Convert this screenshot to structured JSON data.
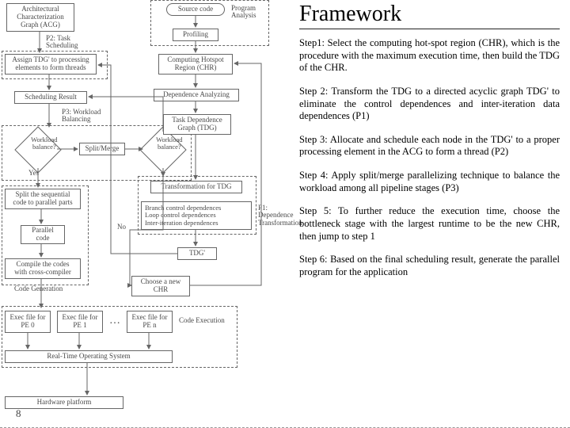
{
  "heading": "Framework",
  "steps": [
    "Step1: Select the computing hot-spot region (CHR), which is the procedure with the maximum execution time, then build the TDG of the CHR.",
    "Step 2: Transform the TDG to a directed acyclic graph TDG' to eliminate the control dependences and inter-iteration data dependences (P1)",
    "Step 3: Allocate and schedule each node in the TDG' to a proper processing element in the ACG to form a thread (P2)",
    "Step 4: Apply split/merge parallelizing technique to balance the workload among all pipeline stages (P3)",
    "Step 5: To further reduce the execution time, choose the bottleneck stage with the largest runtime to be the new CHR, then jump to step 1",
    "Step 6: Based on the final scheduling result, generate the parallel program for the application"
  ],
  "pagenum": "8",
  "diagram": {
    "acg": "Architectural\nCharacterization\nGraph (ACG)",
    "p2": "P2: Task\nScheduling",
    "assign": "Assign TDG' to processing\nelements to form threads",
    "schedres": "Scheduling Result",
    "p3": "P3: Workload\nBalancing",
    "wbal": "Workload\nbalance?",
    "splitmerge": "Split/Merge",
    "yes": "Yes",
    "split": "Split the sequential\ncode to parallel parts",
    "pcode": "Parallel\ncode",
    "compile": "Compile the codes\nwith cross-compiler",
    "codegen": "Code Generation",
    "e0": "Exec file for\nPE 0",
    "e1": "Exec file for\nPE 1",
    "dots": "…",
    "en": "Exec file for\nPE n",
    "rtos": "Real-Time Operating System",
    "hw": "Hardware platform",
    "codeexec": "Code Execution",
    "srccode": "Source code",
    "proganal": "Program\nAnalysis",
    "profiling": "Profiling",
    "chr": "Computing Hotspot\nRegion (CHR)",
    "depan": "Dependence Analyzing",
    "tdg": "Task Dependence\nGraph (TDG)",
    "xform": "Transformation for TDG",
    "xformlist": "Branch control dependences\nLoop control dependences\nInter-iteration dependences",
    "p1": "P1:\nDependence\nTransformation",
    "tdg2": "TDG'",
    "newchr": "Choose a new\nCHR",
    "no": "No",
    "arrow_color": "#555555"
  }
}
